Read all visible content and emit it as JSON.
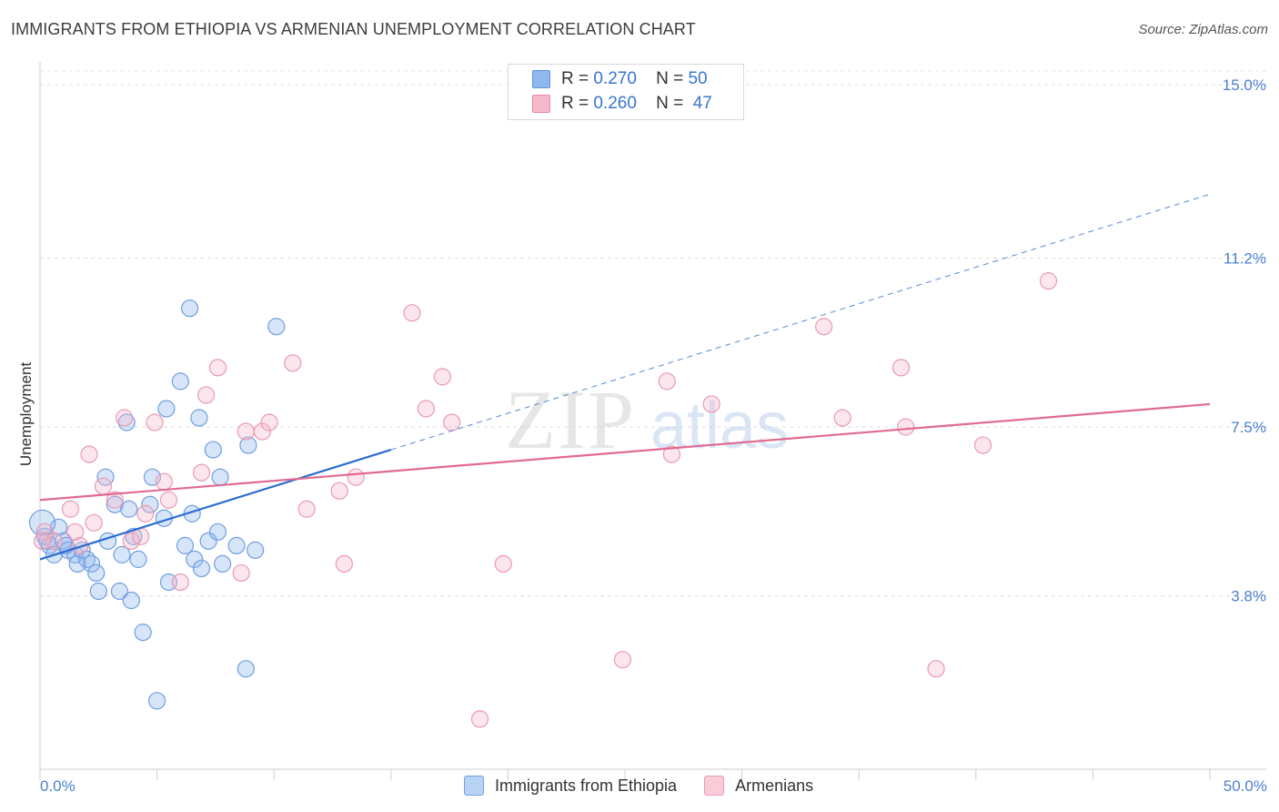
{
  "title": "IMMIGRANTS FROM ETHIOPIA VS ARMENIAN UNEMPLOYMENT CORRELATION CHART",
  "source": "Source: ZipAtlas.com",
  "watermark": {
    "zip": "ZIP",
    "atlas": "atlas"
  },
  "legend_stats": [
    {
      "r_label": "R =",
      "r_value": "0.270",
      "n_label": "N =",
      "n_value": "50",
      "color": "#8fb8ee",
      "border": "#5e93dc"
    },
    {
      "r_label": "R =",
      "r_value": "0.260",
      "n_label": "N =",
      "n_value": "47",
      "color": "#f7b8ca",
      "border": "#e58ba8"
    }
  ],
  "bottom_legend": [
    {
      "label": "Immigrants from Ethiopia",
      "color": "#b9d3f5",
      "border": "#6f9fe0"
    },
    {
      "label": "Armenians",
      "color": "#f9ccd9",
      "border": "#e89ab2"
    }
  ],
  "chart_data": {
    "type": "scatter",
    "title": "IMMIGRANTS FROM ETHIOPIA VS ARMENIAN UNEMPLOYMENT CORRELATION CHART",
    "xlabel": "",
    "ylabel": "Unemployment",
    "xlim": [
      0,
      50
    ],
    "ylim": [
      0,
      15.3
    ],
    "x_tick_labels": [
      "0.0%",
      "50.0%"
    ],
    "y_ticks": [
      3.8,
      7.5,
      11.2,
      15.0
    ],
    "y_tick_labels": [
      "3.8%",
      "7.5%",
      "11.2%",
      "15.0%"
    ],
    "grid": true,
    "series": [
      {
        "name": "Immigrants from Ethiopia",
        "color": "#6f9fe0",
        "fill": "rgba(140,180,238,0.35)",
        "trend_color": "#2a6ccf",
        "trend": {
          "x0": 0,
          "y0": 4.6,
          "x1": 15,
          "y1": 7.0,
          "dash_to_x": 50,
          "dash_to_y": 12.6
        },
        "points": [
          [
            0.2,
            5.1
          ],
          [
            0.4,
            4.9
          ],
          [
            0.6,
            4.7
          ],
          [
            0.8,
            5.3
          ],
          [
            1.0,
            5.0
          ],
          [
            1.2,
            4.8
          ],
          [
            1.5,
            4.7
          ],
          [
            1.6,
            4.5
          ],
          [
            1.8,
            4.8
          ],
          [
            2.0,
            4.6
          ],
          [
            2.2,
            4.5
          ],
          [
            2.4,
            4.3
          ],
          [
            2.5,
            3.9
          ],
          [
            2.8,
            6.4
          ],
          [
            2.9,
            5.0
          ],
          [
            3.2,
            5.8
          ],
          [
            3.4,
            3.9
          ],
          [
            3.5,
            4.7
          ],
          [
            3.7,
            7.6
          ],
          [
            3.8,
            5.7
          ],
          [
            3.9,
            3.7
          ],
          [
            4.2,
            4.6
          ],
          [
            4.4,
            3.0
          ],
          [
            4.7,
            5.8
          ],
          [
            4.8,
            6.4
          ],
          [
            5.0,
            1.5
          ],
          [
            5.3,
            5.5
          ],
          [
            5.4,
            7.9
          ],
          [
            5.5,
            4.1
          ],
          [
            6.0,
            8.5
          ],
          [
            6.2,
            4.9
          ],
          [
            6.4,
            10.1
          ],
          [
            6.5,
            5.6
          ],
          [
            6.6,
            4.6
          ],
          [
            6.8,
            7.7
          ],
          [
            6.9,
            4.4
          ],
          [
            7.2,
            5.0
          ],
          [
            7.4,
            7.0
          ],
          [
            7.6,
            5.2
          ],
          [
            7.7,
            6.4
          ],
          [
            7.8,
            4.5
          ],
          [
            8.4,
            4.9
          ],
          [
            8.8,
            2.2
          ],
          [
            8.9,
            7.1
          ],
          [
            9.2,
            4.8
          ],
          [
            10.1,
            9.7
          ],
          [
            0.1,
            5.4
          ],
          [
            1.1,
            4.9
          ],
          [
            4.0,
            5.1
          ],
          [
            0.3,
            5.0
          ]
        ]
      },
      {
        "name": "Armenians",
        "color": "#e89ab2",
        "fill": "rgba(247,184,202,0.35)",
        "trend_color": "#e06a92",
        "trend": {
          "x0": 0,
          "y0": 5.9,
          "x1": 50,
          "y1": 8.0
        },
        "points": [
          [
            0.2,
            5.2
          ],
          [
            0.6,
            5.0
          ],
          [
            1.3,
            5.7
          ],
          [
            1.7,
            4.9
          ],
          [
            2.1,
            6.9
          ],
          [
            2.3,
            5.4
          ],
          [
            2.7,
            6.2
          ],
          [
            3.2,
            5.9
          ],
          [
            3.6,
            7.7
          ],
          [
            3.9,
            5.0
          ],
          [
            4.3,
            5.1
          ],
          [
            4.5,
            5.6
          ],
          [
            4.9,
            7.6
          ],
          [
            5.3,
            6.3
          ],
          [
            5.5,
            5.9
          ],
          [
            6.0,
            4.1
          ],
          [
            6.9,
            6.5
          ],
          [
            7.1,
            8.2
          ],
          [
            7.6,
            8.8
          ],
          [
            8.6,
            4.3
          ],
          [
            8.8,
            7.4
          ],
          [
            9.5,
            7.4
          ],
          [
            9.8,
            7.6
          ],
          [
            10.8,
            8.9
          ],
          [
            11.4,
            5.7
          ],
          [
            12.8,
            6.1
          ],
          [
            13.0,
            4.5
          ],
          [
            13.5,
            6.4
          ],
          [
            15.9,
            10.0
          ],
          [
            16.5,
            7.9
          ],
          [
            17.2,
            8.6
          ],
          [
            17.6,
            7.6
          ],
          [
            18.8,
            1.1
          ],
          [
            19.8,
            4.5
          ],
          [
            24.9,
            2.4
          ],
          [
            26.8,
            8.5
          ],
          [
            27.0,
            6.9
          ],
          [
            28.7,
            8.0
          ],
          [
            33.5,
            9.7
          ],
          [
            34.3,
            7.7
          ],
          [
            36.8,
            8.8
          ],
          [
            37.0,
            7.5
          ],
          [
            38.3,
            2.2
          ],
          [
            40.3,
            7.1
          ],
          [
            43.1,
            10.7
          ],
          [
            0.1,
            5.0
          ],
          [
            1.5,
            5.2
          ]
        ]
      }
    ]
  }
}
